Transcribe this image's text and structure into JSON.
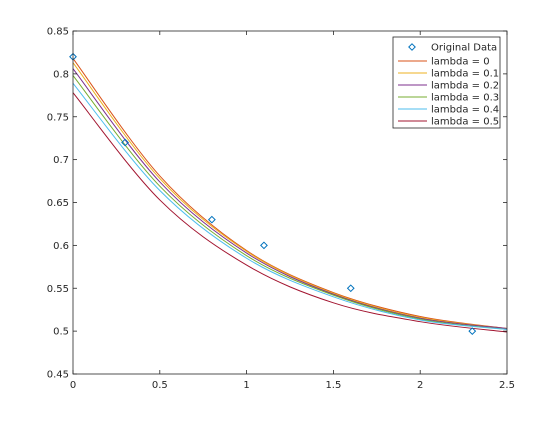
{
  "chart_data": {
    "type": "line",
    "title": "",
    "xlabel": "",
    "ylabel": "",
    "xlim": [
      0,
      2.5
    ],
    "ylim": [
      0.45,
      0.85
    ],
    "xticks": [
      "0",
      "0.5",
      "1",
      "1.5",
      "2",
      "2.5"
    ],
    "yticks": [
      "0.45",
      "0.5",
      "0.55",
      "0.6",
      "0.65",
      "0.7",
      "0.75",
      "0.8",
      "0.85"
    ],
    "grid": false,
    "legend_position": "top-right",
    "scatter": {
      "name": "Original Data",
      "marker": "diamond",
      "color": "#0072BD",
      "x": [
        0,
        0.3,
        0.8,
        1.1,
        1.6,
        2.3
      ],
      "y": [
        0.82,
        0.72,
        0.63,
        0.6,
        0.55,
        0.5
      ]
    },
    "series": [
      {
        "name": "lambda = 0",
        "color": "#D95319",
        "x": [
          0,
          0.5,
          1,
          1.5,
          2,
          2.5
        ],
        "y": [
          0.818,
          0.681,
          0.594,
          0.545,
          0.517,
          0.503
        ]
      },
      {
        "name": "lambda = 0.1",
        "color": "#EDB120",
        "x": [
          0,
          0.5,
          1,
          1.5,
          2,
          2.5
        ],
        "y": [
          0.813,
          0.678,
          0.593,
          0.544,
          0.516,
          0.503
        ]
      },
      {
        "name": "lambda = 0.2",
        "color": "#7E2F8E",
        "x": [
          0,
          0.5,
          1,
          1.5,
          2,
          2.5
        ],
        "y": [
          0.806,
          0.674,
          0.591,
          0.543,
          0.515,
          0.503
        ]
      },
      {
        "name": "lambda = 0.3",
        "color": "#77AC30",
        "x": [
          0,
          0.5,
          1,
          1.5,
          2,
          2.5
        ],
        "y": [
          0.798,
          0.669,
          0.588,
          0.542,
          0.514,
          0.502
        ]
      },
      {
        "name": "lambda = 0.4",
        "color": "#4DBEEE",
        "x": [
          0,
          0.5,
          1,
          1.5,
          2,
          2.5
        ],
        "y": [
          0.789,
          0.664,
          0.585,
          0.54,
          0.513,
          0.502
        ]
      },
      {
        "name": "lambda = 0.5",
        "color": "#A2142F",
        "x": [
          0,
          0.5,
          1,
          1.5,
          2,
          2.5
        ],
        "y": [
          0.778,
          0.653,
          0.577,
          0.533,
          0.511,
          0.499
        ]
      }
    ]
  }
}
